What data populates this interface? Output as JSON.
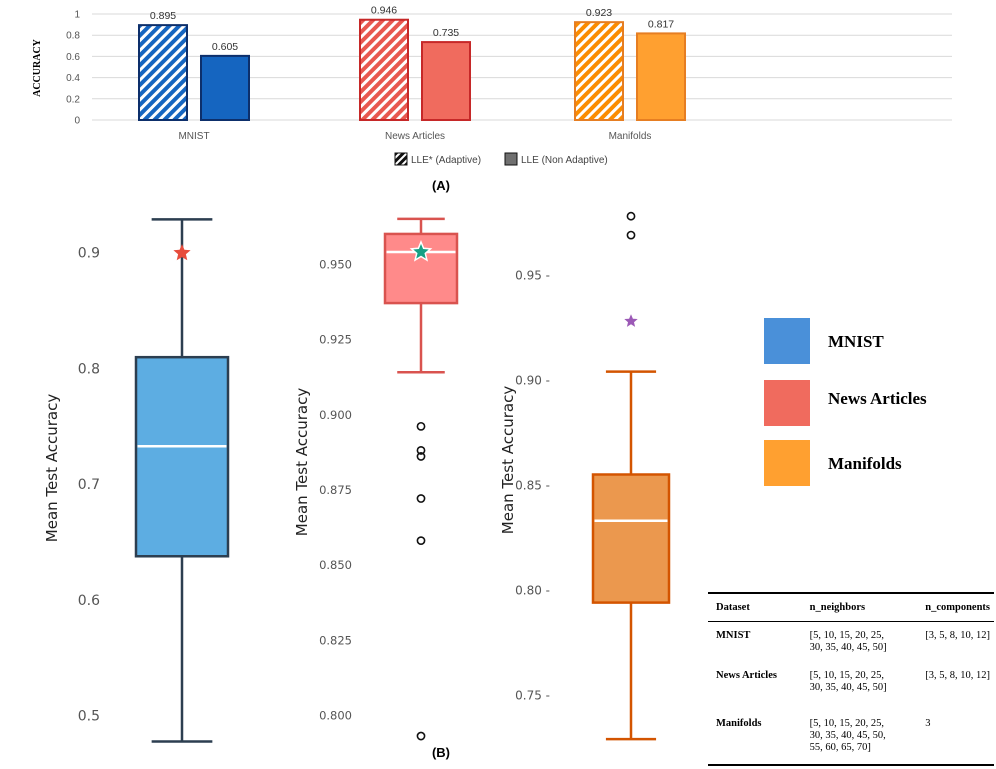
{
  "chart_data": [
    {
      "type": "bar",
      "panel": "(A)",
      "ylabel": "ACCURACY",
      "ylim": [
        0,
        1
      ],
      "yticks": [
        "0",
        "0.2",
        "0.4",
        "0.6",
        "0.8",
        "1"
      ],
      "categories": [
        "MNIST",
        "News Articles",
        "Manifolds"
      ],
      "series": [
        {
          "name": "LLE* (Adaptive)",
          "values": [
            0.895,
            0.946,
            0.923
          ],
          "labels": [
            "0.895",
            "0.946",
            "0.923"
          ]
        },
        {
          "name": "LLE (Non Adaptive)",
          "values": [
            0.605,
            0.735,
            0.817
          ],
          "labels": [
            "0.605",
            "0.735",
            "0.817"
          ]
        }
      ],
      "colors": [
        "#1565C0",
        "#E53935",
        "#FB8C00"
      ]
    },
    {
      "type": "box",
      "panel": "(B)",
      "name": "MNIST",
      "ylabel": "Mean Test Accuracy",
      "ylim": [
        0.475,
        0.945
      ],
      "yticks": [
        "0.5",
        "0.6",
        "0.7",
        "0.8",
        "0.9"
      ],
      "min": 0.478,
      "q1": 0.638,
      "median": 0.733,
      "q3": 0.81,
      "max": 0.929,
      "outliers": [],
      "marker": 0.9,
      "color": "#5DADE2"
    },
    {
      "type": "box",
      "name": "News Articles",
      "ylabel": "Mean Test Accuracy",
      "ylim": [
        0.787,
        0.968
      ],
      "yticks": [
        "0.800",
        "0.825",
        "0.850",
        "0.875",
        "0.900",
        "0.925",
        "0.950"
      ],
      "min": 0.914,
      "q1": 0.937,
      "median": 0.954,
      "q3": 0.96,
      "max": 0.965,
      "outliers": [
        0.896,
        0.888,
        0.886,
        0.872,
        0.858,
        0.793
      ],
      "marker": 0.954,
      "color": "#FF8A8A"
    },
    {
      "type": "box",
      "name": "Manifolds",
      "ylabel": "Mean Test Accuracy",
      "ylim": [
        0.72,
        0.985
      ],
      "yticks": [
        "0.75",
        "0.80",
        "0.85",
        "0.90",
        "0.95"
      ],
      "min": 0.729,
      "q1": 0.794,
      "median": 0.833,
      "q3": 0.855,
      "max": 0.904,
      "outliers": [
        0.978,
        0.969
      ],
      "marker": 0.928,
      "color": "#EB984E"
    }
  ],
  "caption_a": "(A)",
  "caption_b": "(B)",
  "legend_a": {
    "adaptive": "LLE* (Adaptive)",
    "non_adaptive": "LLE (Non Adaptive)"
  },
  "legend_b": [
    {
      "label": "MNIST",
      "color": "#4A90D9"
    },
    {
      "label": "News Articles",
      "color": "#F06B5E"
    },
    {
      "label": "Manifolds",
      "color": "#FFA030"
    }
  ],
  "table": {
    "headers": [
      "Dataset",
      "n_neighbors",
      "n_components"
    ],
    "rows": [
      {
        "dataset": "MNIST",
        "neighbors_1": "[5, 10, 15, 20, 25,",
        "neighbors_2": "30, 35, 40, 45, 50]",
        "neighbors_3": "",
        "components": "[3, 5, 8, 10, 12]"
      },
      {
        "dataset": "News Articles",
        "neighbors_1": "[5, 10, 15, 20, 25,",
        "neighbors_2": "30, 35, 40, 45, 50]",
        "neighbors_3": "",
        "components": "[3, 5, 8, 10, 12]"
      },
      {
        "dataset": "Manifolds",
        "neighbors_1": "[5, 10, 15, 20, 25,",
        "neighbors_2": "30, 35, 40, 45, 50,",
        "neighbors_3": "55, 60, 65, 70]",
        "components": "3"
      }
    ]
  }
}
